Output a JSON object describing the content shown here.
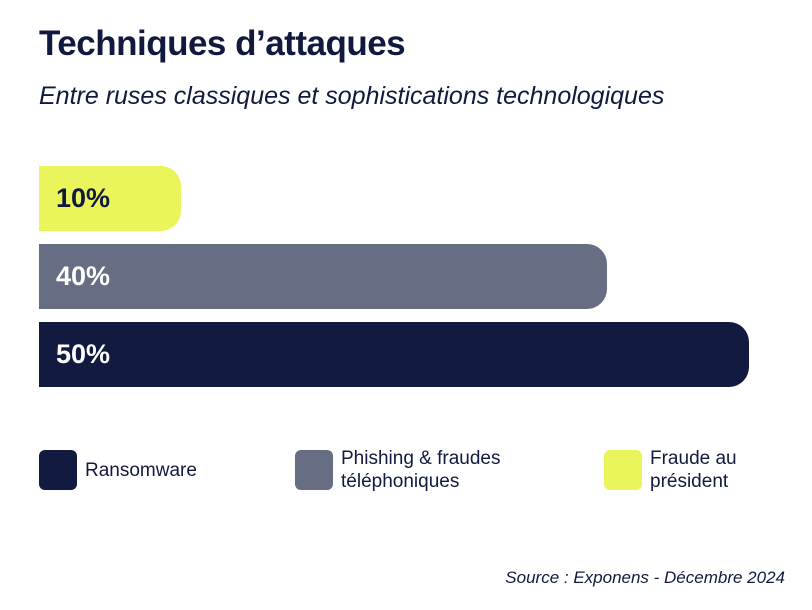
{
  "colors": {
    "ransomware": "#121a3f",
    "phishing": "#676e83",
    "fraude": "#e9f55a",
    "text_dark": "#111a3e",
    "text_light": "#ffffff"
  },
  "chart_data": {
    "type": "bar",
    "orientation": "horizontal",
    "title": "Techniques d’attaques",
    "subtitle": "Entre ruses classiques et sophistications technologiques",
    "categories": [
      "Fraude au président",
      "Phishing & fraudes téléphoniques",
      "Ransomware"
    ],
    "values": [
      10,
      40,
      50
    ],
    "value_labels": [
      "10%",
      "40%",
      "50%"
    ],
    "xlim": [
      0,
      50
    ],
    "grid": false,
    "legend_position": "bottom",
    "legend": [
      {
        "label_lines": [
          "Ransomware"
        ],
        "color": "#121a3f"
      },
      {
        "label_lines": [
          "Phishing & fraudes",
          "téléphoniques"
        ],
        "color": "#676e83"
      },
      {
        "label_lines": [
          "Fraude au",
          "président"
        ],
        "color": "#e9f55a"
      }
    ],
    "source": "Source : Exponens - Décembre 2024"
  }
}
